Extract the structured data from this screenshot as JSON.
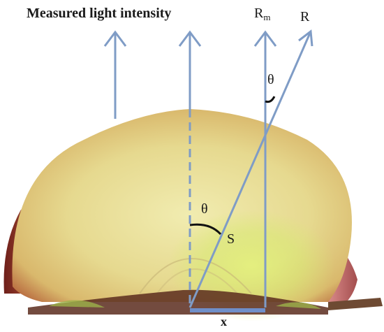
{
  "labels": {
    "title": "Measured light intensity",
    "rm_main": "R",
    "rm_sub": "m",
    "r": "R",
    "theta_top": "θ",
    "theta_mid": "θ",
    "s": "S",
    "x": "x"
  },
  "colors": {
    "arrow": "#7f9cc6",
    "baseline": "#6f8fc9",
    "arc": "#111111",
    "flesh_light": "#ece6a2",
    "flesh_mid": "#d6c47a",
    "skin_edge": "#8a2a22",
    "core_glow": "#dff07a"
  },
  "icons": {
    "arrowhead": "chevron-up-icon"
  }
}
